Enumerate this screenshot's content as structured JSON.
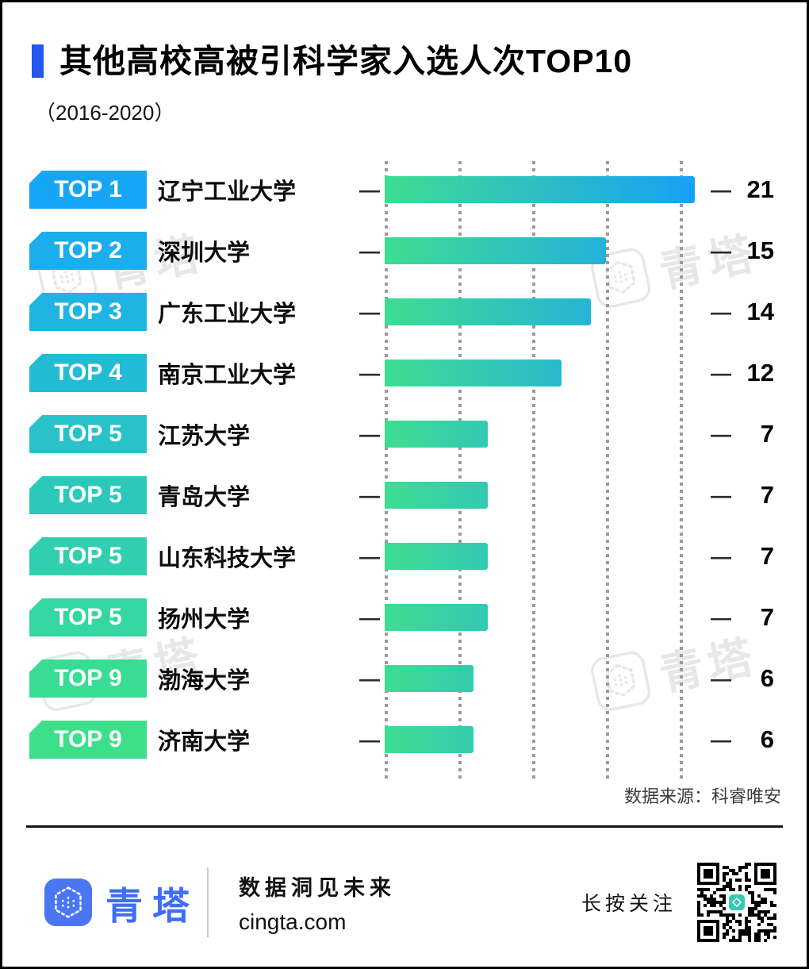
{
  "page": {
    "title": "其他高校高被引科学家入选人次TOP10",
    "subtitle": "（2016-2020）",
    "source": "数据来源：科睿唯安"
  },
  "chart_data": {
    "type": "bar",
    "orientation": "horizontal",
    "title": "其他高校高被引科学家入选人次TOP10",
    "subtitle": "（2016-2020）",
    "categories": [
      "辽宁工业大学",
      "深圳大学",
      "广东工业大学",
      "南京工业大学",
      "江苏大学",
      "青岛大学",
      "山东科技大学",
      "扬州大学",
      "渤海大学",
      "济南大学"
    ],
    "ranks": [
      "TOP 1",
      "TOP 2",
      "TOP 3",
      "TOP 4",
      "TOP 5",
      "TOP 5",
      "TOP 5",
      "TOP 5",
      "TOP 9",
      "TOP 9"
    ],
    "values": [
      21,
      15,
      14,
      12,
      7,
      7,
      7,
      7,
      6,
      6
    ],
    "xlim": [
      0,
      21
    ],
    "gridlines": [
      0,
      5,
      10,
      15,
      20
    ],
    "grid_style": "dotted-vertical",
    "source": "数据来源：科睿唯安"
  },
  "footer": {
    "brand": "青塔",
    "slogan": "数据洞见未来",
    "site": "cingta.com",
    "follow": "长按关注"
  },
  "watermark": {
    "text": "青塔"
  },
  "colors": {
    "accent_blue": "#2457f0",
    "brand_blue": "#3f6df4",
    "bar_gradient_from": "#3edd92",
    "bar_gradient_to": "#18a0f6",
    "badge_colors": [
      "#17a6f5",
      "#1badec",
      "#1fb4e2",
      "#24bbd5",
      "#28c2c8",
      "#2cc9bb",
      "#30d0ae",
      "#34d6a1",
      "#38dc95",
      "#3ce08b"
    ],
    "gridline_gray": "#9a9a9a",
    "watermark_gray": "#d4d4d4",
    "qr_center_teal": "#35c8b4"
  }
}
